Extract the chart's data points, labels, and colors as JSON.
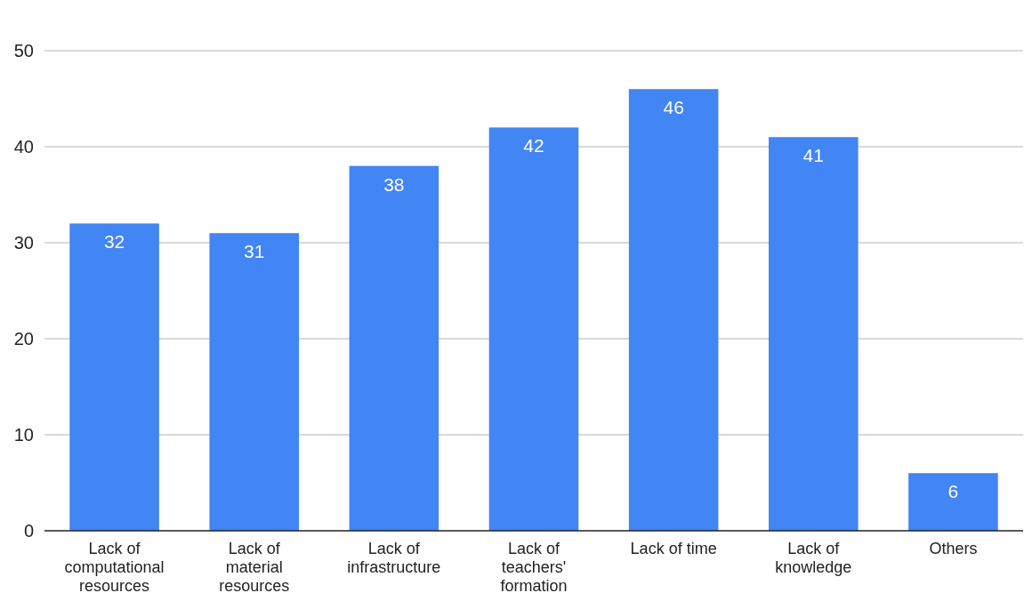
{
  "chart_data": {
    "type": "bar",
    "categories": [
      "Lack of computational resources",
      "Lack of material resources",
      "Lack of infrastructure",
      "Lack of teachers' formation",
      "Lack of time",
      "Lack of knowledge",
      "Others"
    ],
    "values": [
      32,
      31,
      38,
      42,
      46,
      41,
      6
    ],
    "color": "#4285f4",
    "ylim": [
      0,
      50
    ],
    "yticks": [
      0,
      10,
      20,
      30,
      40,
      50
    ],
    "grid": "y",
    "data_labels": true
  }
}
